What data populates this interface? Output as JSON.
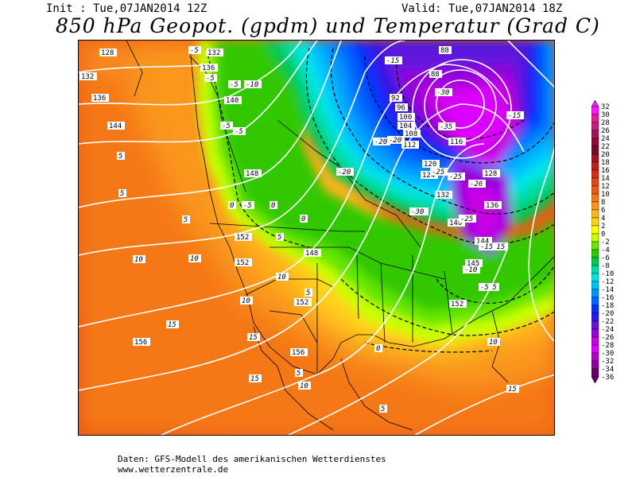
{
  "header": {
    "init": "Init : Tue,07JAN2014 12Z",
    "valid": "Valid: Tue,07JAN2014 18Z"
  },
  "title": "850 hPa Geopot. (gpdm) und Temperatur (Grad C)",
  "legend": {
    "levels": [
      32,
      30,
      28,
      26,
      24,
      22,
      20,
      18,
      16,
      14,
      12,
      10,
      8,
      6,
      4,
      2,
      0,
      -2,
      -4,
      -6,
      -8,
      -10,
      -12,
      -14,
      -16,
      -18,
      -20,
      -22,
      -24,
      -26,
      -28,
      -30,
      -32,
      -34,
      -36
    ],
    "colors": [
      "#ff14ff",
      "#e61e96",
      "#c81e78",
      "#a0145a",
      "#8c0a3c",
      "#780a28",
      "#a0141e",
      "#be1e1e",
      "#d23214",
      "#e64614",
      "#f05a14",
      "#f57814",
      "#fa961e",
      "#ffb41e",
      "#ffd21e",
      "#ffff00",
      "#c8ff00",
      "#64e600",
      "#32c800",
      "#00c850",
      "#00dca0",
      "#00e6e6",
      "#00beff",
      "#0096ff",
      "#0064ff",
      "#0032ff",
      "#3214e6",
      "#6414dc",
      "#9600dc",
      "#c800e6",
      "#dc00ff",
      "#b400c8",
      "#8c00a0",
      "#64006e"
    ]
  },
  "map": {
    "geopotential_labels": [
      "88",
      "88",
      "92",
      "96",
      "100",
      "104",
      "108",
      "112",
      "116",
      "120",
      "124",
      "128",
      "132",
      "132",
      "136",
      "136",
      "136",
      "140",
      "140",
      "144",
      "144",
      "145",
      "148",
      "148",
      "152",
      "152",
      "152",
      "152",
      "156",
      "156",
      "128",
      "132"
    ],
    "temperature_labels": [
      "-5",
      "-5",
      "-5",
      "-10",
      "-5",
      "-5",
      "-15",
      "-30",
      "-35",
      "-20",
      "-20",
      "-25",
      "-25",
      "-15",
      "-30",
      "-26",
      "-25",
      "-20",
      "-15",
      "-10",
      "-5",
      "0",
      "0",
      "0",
      "5",
      "5",
      "5",
      "5",
      "10",
      "10",
      "10",
      "10",
      "15",
      "15",
      "15",
      "15",
      "10",
      "5",
      "0",
      "5",
      "-5",
      "5",
      "-5",
      "-15",
      "-30",
      "10"
    ]
  },
  "footer": {
    "line1": "Daten: GFS-Modell des amerikanischen Wetterdienstes",
    "line2": "www.wetterzentrale.de"
  }
}
